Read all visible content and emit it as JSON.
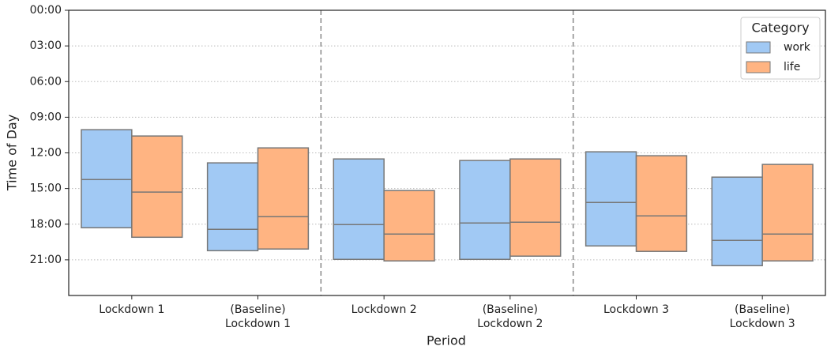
{
  "chart_data": {
    "type": "box",
    "x_label": "Period",
    "y_label": "Time of Day",
    "categories": [
      "Lockdown 1",
      "(Baseline)\nLockdown 1",
      "Lockdown 2",
      "(Baseline)\nLockdown 2",
      "Lockdown 3",
      "(Baseline)\nLockdown 3"
    ],
    "ylim": [
      24,
      0
    ],
    "inverted": true,
    "yticks": [
      {
        "value": 0,
        "label": "00:00"
      },
      {
        "value": 3,
        "label": "03:00"
      },
      {
        "value": 6,
        "label": "06:00"
      },
      {
        "value": 9,
        "label": "09:00"
      },
      {
        "value": 12,
        "label": "12:00"
      },
      {
        "value": 15,
        "label": "15:00"
      },
      {
        "value": 18,
        "label": "18:00"
      },
      {
        "value": 21,
        "label": "21:00"
      }
    ],
    "grid": true,
    "legend_title": "Category",
    "legend_position": "upper right",
    "series": [
      {
        "name": "work",
        "color": "#a1c9f4",
        "q1": [
          10.05,
          12.84,
          12.51,
          12.64,
          11.91,
          14.04
        ],
        "median": [
          14.24,
          18.43,
          18.03,
          17.9,
          16.17,
          19.36
        ],
        "q3": [
          18.3,
          20.23,
          20.96,
          20.96,
          19.83,
          21.49
        ]
      },
      {
        "name": "life",
        "color": "#ffb482",
        "q1": [
          10.58,
          11.58,
          15.17,
          12.51,
          12.24,
          12.97
        ],
        "median": [
          15.3,
          17.37,
          18.83,
          17.83,
          17.3,
          18.83
        ],
        "q3": [
          19.1,
          20.09,
          21.09,
          20.69,
          20.29,
          21.09
        ]
      }
    ]
  }
}
